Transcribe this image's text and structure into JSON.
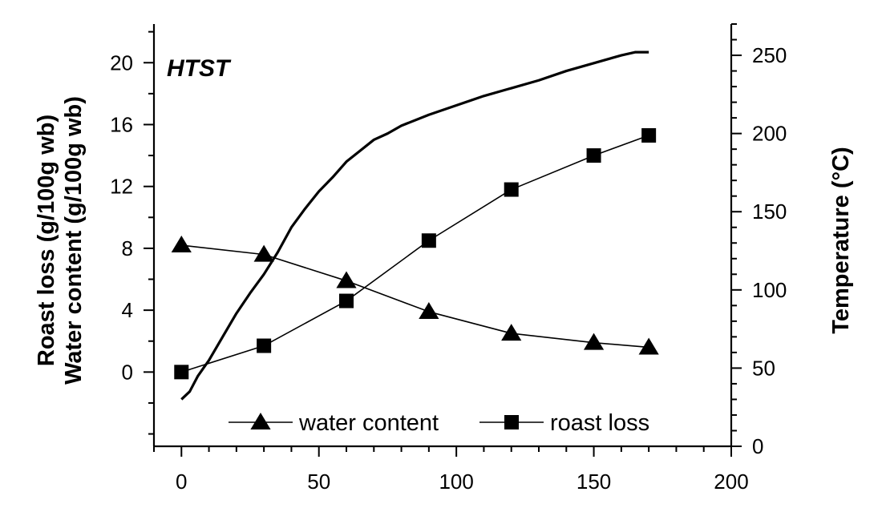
{
  "chart_data": {
    "type": "line",
    "annotation": "HTST",
    "x_axis": {
      "range": [
        -10,
        200
      ],
      "ticks": [
        0,
        50,
        100,
        150,
        200
      ],
      "minor_step": 10
    },
    "y_left": {
      "label_lines": [
        "Roast loss (g/100g wb)",
        "Water content (g/100g wb)"
      ],
      "range": [
        -4.8,
        22.5
      ],
      "ticks": [
        0,
        4,
        8,
        12,
        16,
        20
      ],
      "minor_step": 2
    },
    "y_right": {
      "label": "Temperature (°C)",
      "range": [
        0,
        270
      ],
      "ticks": [
        0,
        50,
        100,
        150,
        200,
        250
      ],
      "minor_step": 10
    },
    "series": [
      {
        "name": "water content",
        "axis": "left",
        "marker": "triangle",
        "x": [
          0,
          30,
          60,
          90,
          120,
          150,
          170
        ],
        "y": [
          8.2,
          7.6,
          5.9,
          3.9,
          2.5,
          1.9,
          1.6
        ]
      },
      {
        "name": "roast loss",
        "axis": "left",
        "marker": "square",
        "x": [
          0,
          30,
          60,
          90,
          120,
          150,
          170
        ],
        "y": [
          0.0,
          1.7,
          4.6,
          8.5,
          11.8,
          14.0,
          15.3
        ]
      },
      {
        "axis": "right",
        "marker": "none",
        "x": [
          0,
          3,
          6,
          10,
          15,
          20,
          25,
          30,
          35,
          40,
          45,
          50,
          55,
          60,
          65,
          70,
          75,
          80,
          90,
          100,
          110,
          120,
          130,
          140,
          150,
          160,
          165,
          170
        ],
        "y": [
          30,
          35,
          45,
          55,
          70,
          85,
          98,
          110,
          124,
          140,
          152,
          163,
          172,
          182,
          189,
          196,
          200,
          205,
          212,
          218,
          224,
          229,
          234,
          240,
          245,
          250,
          252,
          252
        ]
      }
    ],
    "legend": {
      "position": "bottom-right",
      "entries": [
        "water content",
        "roast loss"
      ]
    },
    "grid": false
  }
}
